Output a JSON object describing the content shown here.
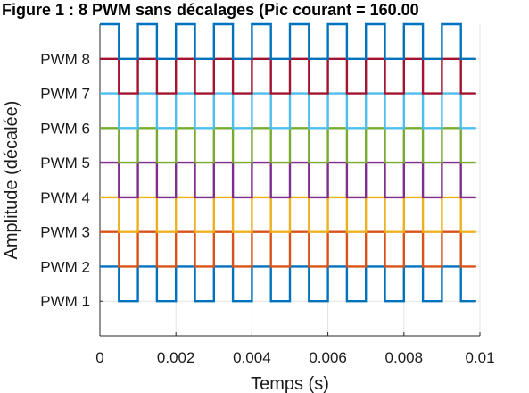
{
  "chart_data": {
    "type": "line",
    "title": "Figure 1 : 8 PWM sans décalages (Pic courant = 160.00",
    "xlabel": "Temps (s)",
    "ylabel": "Amplitude (décalée)",
    "xlim": [
      0,
      0.01
    ],
    "x_ticks": [
      0,
      0.002,
      0.004,
      0.006,
      0.008,
      0.01
    ],
    "x_tick_labels": [
      "0",
      "0.002",
      "0.004",
      "0.006",
      "0.008",
      "0.01"
    ],
    "ylim": [
      0,
      9
    ],
    "y_ticks": [
      1,
      2,
      3,
      4,
      5,
      6,
      7,
      8
    ],
    "y_tick_labels": [
      "PWM 1",
      "PWM 2",
      "PWM 3",
      "PWM 4",
      "PWM 5",
      "PWM 6",
      "PWM 7",
      "PWM 8"
    ],
    "grid": true,
    "pwm": {
      "period": 0.001,
      "duty": 0.5,
      "x_start": 0,
      "x_end": 0.0099,
      "high_offset": 1,
      "low_offset": 0
    },
    "series": [
      {
        "offset": 1,
        "color": "#0072BD"
      },
      {
        "offset": 2,
        "color": "#D95319"
      },
      {
        "offset": 3,
        "color": "#EDB120"
      },
      {
        "offset": 4,
        "color": "#7E2F8E"
      },
      {
        "offset": 5,
        "color": "#77AC30"
      },
      {
        "offset": 6,
        "color": "#4DBEEE"
      },
      {
        "offset": 7,
        "color": "#A2142F"
      },
      {
        "offset": 8,
        "color": "#0072BD"
      }
    ]
  }
}
